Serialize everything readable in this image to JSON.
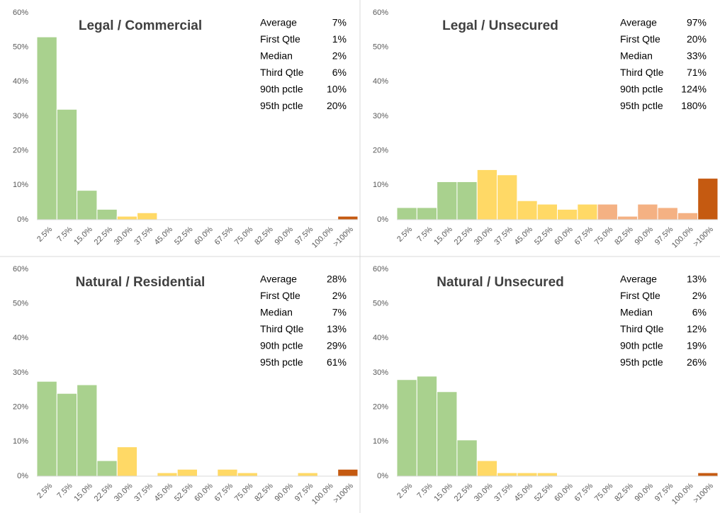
{
  "chart_data": [
    {
      "type": "bar",
      "title": "Legal / Commercial",
      "categories": [
        "2.5%",
        "7.5%",
        "15.0%",
        "22.5%",
        "30.0%",
        "37.5%",
        "45.0%",
        "52.5%",
        "60.0%",
        "67.5%",
        "75.0%",
        "82.5%",
        "90.0%",
        "97.5%",
        "100.0%",
        ">100%"
      ],
      "values": [
        53,
        32,
        8.5,
        3,
        1,
        2,
        0,
        0,
        0,
        0,
        0,
        0,
        0,
        0,
        0,
        1
      ],
      "colors": [
        "#a9d18e",
        "#a9d18e",
        "#a9d18e",
        "#a9d18e",
        "#ffd966",
        "#ffd966",
        "#ffd966",
        "#ffd966",
        "#ffd966",
        "#ffd966",
        "#f4b183",
        "#f4b183",
        "#f4b183",
        "#f4b183",
        "#f4b183",
        "#c55a11"
      ],
      "ylim": [
        0,
        60
      ],
      "yticks": [
        {
          "value": 0,
          "label": "0%"
        },
        {
          "value": 10,
          "label": "10%"
        },
        {
          "value": 20,
          "label": "20%"
        },
        {
          "value": 30,
          "label": "30%"
        },
        {
          "value": 40,
          "label": "40%"
        },
        {
          "value": 50,
          "label": "50%"
        },
        {
          "value": 60,
          "label": "60%"
        }
      ],
      "stat_labels": [
        "Average",
        "First Qtle",
        "Median",
        "Third Qtle",
        "90th pctle",
        "95th pctle"
      ],
      "stat_values": [
        {
          "value": 7,
          "label": "7%"
        },
        {
          "value": 1,
          "label": "1%"
        },
        {
          "value": 2,
          "label": "2%"
        },
        {
          "value": 6,
          "label": "6%"
        },
        {
          "value": 10,
          "label": "10%"
        },
        {
          "value": 20,
          "label": "20%"
        }
      ]
    },
    {
      "type": "bar",
      "title": "Legal / Unsecured",
      "categories": [
        "2.5%",
        "7.5%",
        "15.0%",
        "22.5%",
        "30.0%",
        "37.5%",
        "45.0%",
        "52.5%",
        "60.0%",
        "67.5%",
        "75.0%",
        "82.5%",
        "90.0%",
        "97.5%",
        "100.0%",
        ">100%"
      ],
      "values": [
        3.5,
        3.5,
        11,
        11,
        14.5,
        13,
        5.5,
        4.5,
        3,
        4.5,
        4.5,
        1,
        4.5,
        3.5,
        2,
        12
      ],
      "colors": [
        "#a9d18e",
        "#a9d18e",
        "#a9d18e",
        "#a9d18e",
        "#ffd966",
        "#ffd966",
        "#ffd966",
        "#ffd966",
        "#ffd966",
        "#ffd966",
        "#f4b183",
        "#f4b183",
        "#f4b183",
        "#f4b183",
        "#f4b183",
        "#c55a11"
      ],
      "ylim": [
        0,
        60
      ],
      "yticks": [
        {
          "value": 0,
          "label": "0%"
        },
        {
          "value": 10,
          "label": "10%"
        },
        {
          "value": 20,
          "label": "20%"
        },
        {
          "value": 30,
          "label": "30%"
        },
        {
          "value": 40,
          "label": "40%"
        },
        {
          "value": 50,
          "label": "50%"
        },
        {
          "value": 60,
          "label": "60%"
        }
      ],
      "stat_labels": [
        "Average",
        "First Qtle",
        "Median",
        "Third Qtle",
        "90th pctle",
        "95th pctle"
      ],
      "stat_values": [
        {
          "value": 97,
          "label": "97%"
        },
        {
          "value": 20,
          "label": "20%"
        },
        {
          "value": 33,
          "label": "33%"
        },
        {
          "value": 71,
          "label": "71%"
        },
        {
          "value": 124,
          "label": "124%"
        },
        {
          "value": 180,
          "label": "180%"
        }
      ]
    },
    {
      "type": "bar",
      "title": "Natural / Residential",
      "categories": [
        "2.5%",
        "7.5%",
        "15.0%",
        "22.5%",
        "30.0%",
        "37.5%",
        "45.0%",
        "52.5%",
        "60.0%",
        "67.5%",
        "75.0%",
        "82.5%",
        "90.0%",
        "97.5%",
        "100.0%",
        ">100%"
      ],
      "values": [
        27.5,
        24,
        26.5,
        4.5,
        8.5,
        0,
        1,
        2,
        0,
        2,
        1,
        0,
        0,
        1,
        0,
        2
      ],
      "colors": [
        "#a9d18e",
        "#a9d18e",
        "#a9d18e",
        "#a9d18e",
        "#ffd966",
        "#ffd966",
        "#ffd966",
        "#ffd966",
        "#ffd966",
        "#ffd966",
        "#ffd966",
        "#ffd966",
        "#ffd966",
        "#ffd966",
        "#ffd966",
        "#c55a11"
      ],
      "ylim": [
        0,
        60
      ],
      "yticks": [
        {
          "value": 0,
          "label": "0%"
        },
        {
          "value": 10,
          "label": "10%"
        },
        {
          "value": 20,
          "label": "20%"
        },
        {
          "value": 30,
          "label": "30%"
        },
        {
          "value": 40,
          "label": "40%"
        },
        {
          "value": 50,
          "label": "50%"
        },
        {
          "value": 60,
          "label": "60%"
        }
      ],
      "stat_labels": [
        "Average",
        "First Qtle",
        "Median",
        "Third Qtle",
        "90th pctle",
        "95th pctle"
      ],
      "stat_values": [
        {
          "value": 28,
          "label": "28%"
        },
        {
          "value": 2,
          "label": "2%"
        },
        {
          "value": 7,
          "label": "7%"
        },
        {
          "value": 13,
          "label": "13%"
        },
        {
          "value": 29,
          "label": "29%"
        },
        {
          "value": 61,
          "label": "61%"
        }
      ]
    },
    {
      "type": "bar",
      "title": "Natural / Unsecured",
      "categories": [
        "2.5%",
        "7.5%",
        "15.0%",
        "22.5%",
        "30.0%",
        "37.5%",
        "45.0%",
        "52.5%",
        "60.0%",
        "67.5%",
        "75.0%",
        "82.5%",
        "90.0%",
        "97.5%",
        "100.0%",
        ">100%"
      ],
      "values": [
        28,
        29,
        24.5,
        10.5,
        4.5,
        1,
        1,
        1,
        0,
        0,
        0,
        0,
        0,
        0,
        0,
        1
      ],
      "colors": [
        "#a9d18e",
        "#a9d18e",
        "#a9d18e",
        "#a9d18e",
        "#ffd966",
        "#ffd966",
        "#ffd966",
        "#ffd966",
        "#ffd966",
        "#ffd966",
        "#ffd966",
        "#ffd966",
        "#ffd966",
        "#ffd966",
        "#ffd966",
        "#c55a11"
      ],
      "ylim": [
        0,
        60
      ],
      "yticks": [
        {
          "value": 0,
          "label": "0%"
        },
        {
          "value": 10,
          "label": "10%"
        },
        {
          "value": 20,
          "label": "20%"
        },
        {
          "value": 30,
          "label": "30%"
        },
        {
          "value": 40,
          "label": "40%"
        },
        {
          "value": 50,
          "label": "50%"
        },
        {
          "value": 60,
          "label": "60%"
        }
      ],
      "stat_labels": [
        "Average",
        "First Qtle",
        "Median",
        "Third Qtle",
        "90th pctle",
        "95th pctle"
      ],
      "stat_values": [
        {
          "value": 13,
          "label": "13%"
        },
        {
          "value": 2,
          "label": "2%"
        },
        {
          "value": 6,
          "label": "6%"
        },
        {
          "value": 12,
          "label": "12%"
        },
        {
          "value": 19,
          "label": "19%"
        },
        {
          "value": 26,
          "label": "26%"
        }
      ]
    }
  ]
}
